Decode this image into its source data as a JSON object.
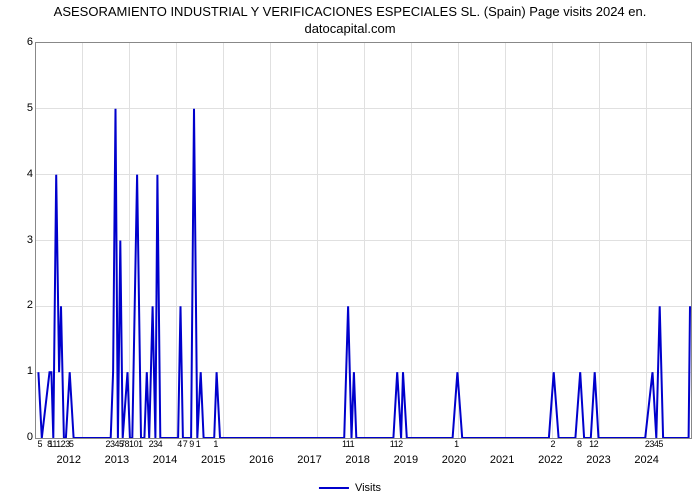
{
  "chart": {
    "type": "line",
    "title_line1": "ASESORAMIENTO INDUSTRIAL Y VERIFICACIONES ESPECIALES SL. (Spain) Page visits 2024 en.",
    "title_line2": "datocapital.com",
    "legend_label": "Visits",
    "line_color": "#0000cc",
    "line_width": 2,
    "background_color": "#ffffff",
    "grid_color": "#e0e0e0",
    "axis_color": "#888888",
    "title_fontsize": 13,
    "tick_fontsize": 11,
    "month_fontsize": 9,
    "ylim": [
      0,
      6
    ],
    "ytick_step": 1,
    "xlim_year": [
      2011.3,
      2024.9
    ],
    "year_ticks": [
      2012,
      2013,
      2014,
      2015,
      2016,
      2017,
      2018,
      2019,
      2020,
      2021,
      2022,
      2023,
      2024
    ],
    "month_tick_groups": [
      {
        "pos": 2011.4,
        "text": "5"
      },
      {
        "pos": 2011.6,
        "text": "8"
      },
      {
        "pos": 2011.8,
        "text": "11123"
      },
      {
        "pos": 2012.05,
        "text": "5"
      },
      {
        "pos": 2012.95,
        "text": "2345"
      },
      {
        "pos": 2013.3,
        "text": "78101"
      },
      {
        "pos": 2013.8,
        "text": "234"
      },
      {
        "pos": 2014.3,
        "text": "4"
      },
      {
        "pos": 2014.55,
        "text": "7 9 1"
      },
      {
        "pos": 2015.05,
        "text": "1"
      },
      {
        "pos": 2017.8,
        "text": "111"
      },
      {
        "pos": 2018.8,
        "text": "112"
      },
      {
        "pos": 2020.05,
        "text": "1"
      },
      {
        "pos": 2022.05,
        "text": "2"
      },
      {
        "pos": 2022.6,
        "text": "8"
      },
      {
        "pos": 2022.9,
        "text": "12"
      },
      {
        "pos": 2024.15,
        "text": "2345"
      }
    ],
    "data": [
      {
        "t": 2011.35,
        "v": 1
      },
      {
        "t": 2011.42,
        "v": 0
      },
      {
        "t": 2011.58,
        "v": 1
      },
      {
        "t": 2011.62,
        "v": 1
      },
      {
        "t": 2011.66,
        "v": 0
      },
      {
        "t": 2011.72,
        "v": 4
      },
      {
        "t": 2011.78,
        "v": 1
      },
      {
        "t": 2011.82,
        "v": 2
      },
      {
        "t": 2011.88,
        "v": 0
      },
      {
        "t": 2011.92,
        "v": 0
      },
      {
        "t": 2012.0,
        "v": 1
      },
      {
        "t": 2012.08,
        "v": 0
      },
      {
        "t": 2012.45,
        "v": 0
      },
      {
        "t": 2012.85,
        "v": 0
      },
      {
        "t": 2012.9,
        "v": 1
      },
      {
        "t": 2012.95,
        "v": 5
      },
      {
        "t": 2013.0,
        "v": 0
      },
      {
        "t": 2013.05,
        "v": 3
      },
      {
        "t": 2013.1,
        "v": 0
      },
      {
        "t": 2013.2,
        "v": 1
      },
      {
        "t": 2013.25,
        "v": 0
      },
      {
        "t": 2013.3,
        "v": 0
      },
      {
        "t": 2013.4,
        "v": 4
      },
      {
        "t": 2013.48,
        "v": 0
      },
      {
        "t": 2013.55,
        "v": 0
      },
      {
        "t": 2013.6,
        "v": 1
      },
      {
        "t": 2013.65,
        "v": 0
      },
      {
        "t": 2013.72,
        "v": 2
      },
      {
        "t": 2013.78,
        "v": 0
      },
      {
        "t": 2013.82,
        "v": 4
      },
      {
        "t": 2013.88,
        "v": 0
      },
      {
        "t": 2013.95,
        "v": 0
      },
      {
        "t": 2014.25,
        "v": 0
      },
      {
        "t": 2014.3,
        "v": 2
      },
      {
        "t": 2014.35,
        "v": 0
      },
      {
        "t": 2014.52,
        "v": 0
      },
      {
        "t": 2014.58,
        "v": 5
      },
      {
        "t": 2014.65,
        "v": 0
      },
      {
        "t": 2014.72,
        "v": 1
      },
      {
        "t": 2014.78,
        "v": 0
      },
      {
        "t": 2015.0,
        "v": 0
      },
      {
        "t": 2015.05,
        "v": 1
      },
      {
        "t": 2015.12,
        "v": 0
      },
      {
        "t": 2016.0,
        "v": 0
      },
      {
        "t": 2017.0,
        "v": 0
      },
      {
        "t": 2017.7,
        "v": 0
      },
      {
        "t": 2017.78,
        "v": 2
      },
      {
        "t": 2017.85,
        "v": 0
      },
      {
        "t": 2017.9,
        "v": 1
      },
      {
        "t": 2017.95,
        "v": 0
      },
      {
        "t": 2018.45,
        "v": 0
      },
      {
        "t": 2018.72,
        "v": 0
      },
      {
        "t": 2018.8,
        "v": 1
      },
      {
        "t": 2018.88,
        "v": 0
      },
      {
        "t": 2018.92,
        "v": 1
      },
      {
        "t": 2019.0,
        "v": 0
      },
      {
        "t": 2019.95,
        "v": 0
      },
      {
        "t": 2020.05,
        "v": 1
      },
      {
        "t": 2020.15,
        "v": 0
      },
      {
        "t": 2021.0,
        "v": 0
      },
      {
        "t": 2021.95,
        "v": 0
      },
      {
        "t": 2022.05,
        "v": 1
      },
      {
        "t": 2022.15,
        "v": 0
      },
      {
        "t": 2022.5,
        "v": 0
      },
      {
        "t": 2022.6,
        "v": 1
      },
      {
        "t": 2022.68,
        "v": 0
      },
      {
        "t": 2022.82,
        "v": 0
      },
      {
        "t": 2022.9,
        "v": 1
      },
      {
        "t": 2022.98,
        "v": 0
      },
      {
        "t": 2023.95,
        "v": 0
      },
      {
        "t": 2024.1,
        "v": 1
      },
      {
        "t": 2024.18,
        "v": 0
      },
      {
        "t": 2024.25,
        "v": 2
      },
      {
        "t": 2024.32,
        "v": 0
      },
      {
        "t": 2024.85,
        "v": 0
      },
      {
        "t": 2024.88,
        "v": 2
      }
    ]
  }
}
